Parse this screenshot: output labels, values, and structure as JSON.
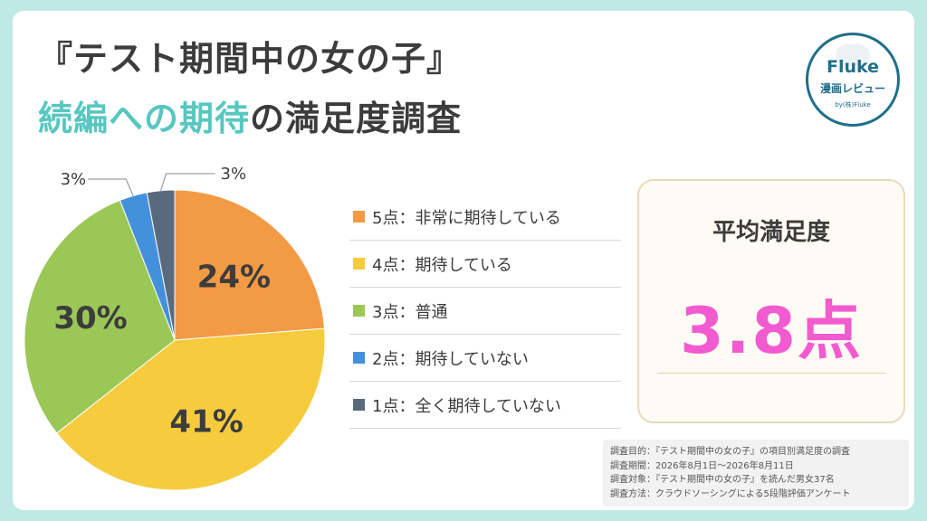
{
  "header": {
    "title_line1": "『テスト期間中の女の子』",
    "title_line2_highlight": "続編への期待",
    "title_line2_rest": "の満足度調査"
  },
  "logo": {
    "name": "Fluke",
    "subtitle": "漫画レビュー",
    "byline": "by(株)Fluke"
  },
  "chart_data": {
    "type": "pie",
    "categories": [
      "5点：非常に期待している",
      "4点：期待している",
      "3点：普通",
      "2点：期待していない",
      "1点：全く期待していない"
    ],
    "values": [
      24,
      41,
      30,
      3,
      3
    ],
    "labels": [
      "24%",
      "41%",
      "30%",
      "3%",
      "3%"
    ],
    "colors": [
      "#f39a45",
      "#f6cb3e",
      "#9bc757",
      "#4390dd",
      "#5a6a7e"
    ],
    "legend": "right"
  },
  "average": {
    "label": "平均満足度",
    "value": "3.8点"
  },
  "notes": [
    "調査目的：『テスト期間中の女の子』の項目別満足度の調査",
    "調査期間：2026年8月1日～2026年8月11日",
    "調査対象：『テスト期間中の女の子』を読んだ男女37名",
    "調査方法：クラウドソーシングによる5段階評価アンケート"
  ]
}
